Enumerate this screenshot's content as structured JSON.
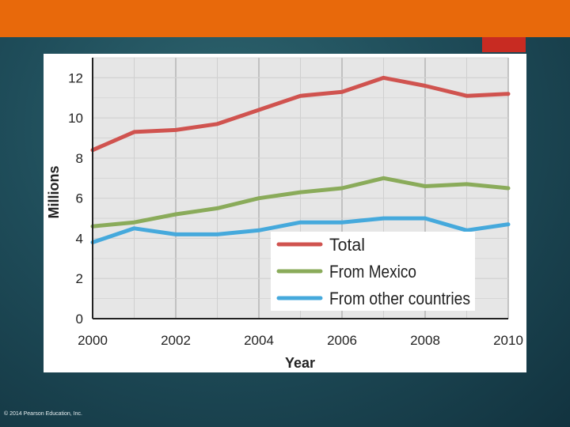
{
  "slide": {
    "copyright": "© 2014 Pearson Education, Inc.",
    "colors": {
      "top_bar": "#e8690b",
      "accent": "#c82b22",
      "plot_bg": "#e6e6e6"
    }
  },
  "chart_data": {
    "type": "line",
    "title": "",
    "xlabel": "Year",
    "ylabel": "Millions",
    "xlim": [
      2000,
      2010
    ],
    "ylim": [
      0,
      13
    ],
    "x_ticks": [
      "2000",
      "2002",
      "2004",
      "2006",
      "2008",
      "2010"
    ],
    "y_ticks": [
      "0",
      "2",
      "4",
      "6",
      "8",
      "10",
      "12"
    ],
    "grid": "vertical and horizontal",
    "legend_position": "bottom-right",
    "x": [
      2000,
      2001,
      2002,
      2003,
      2004,
      2005,
      2006,
      2007,
      2008,
      2009,
      2010
    ],
    "series": [
      {
        "name": "Total",
        "color": "#d0534f",
        "values": [
          8.4,
          9.3,
          9.4,
          9.7,
          10.4,
          11.1,
          11.3,
          12.0,
          11.6,
          11.1,
          11.2
        ]
      },
      {
        "name": "From Mexico",
        "color": "#8aab5a",
        "values": [
          4.6,
          4.8,
          5.2,
          5.5,
          6.0,
          6.3,
          6.5,
          7.0,
          6.6,
          6.7,
          6.5
        ]
      },
      {
        "name": "From other countries",
        "color": "#45a9dc",
        "values": [
          3.8,
          4.5,
          4.2,
          4.2,
          4.4,
          4.8,
          4.8,
          5.0,
          5.0,
          4.4,
          4.7
        ]
      }
    ]
  }
}
